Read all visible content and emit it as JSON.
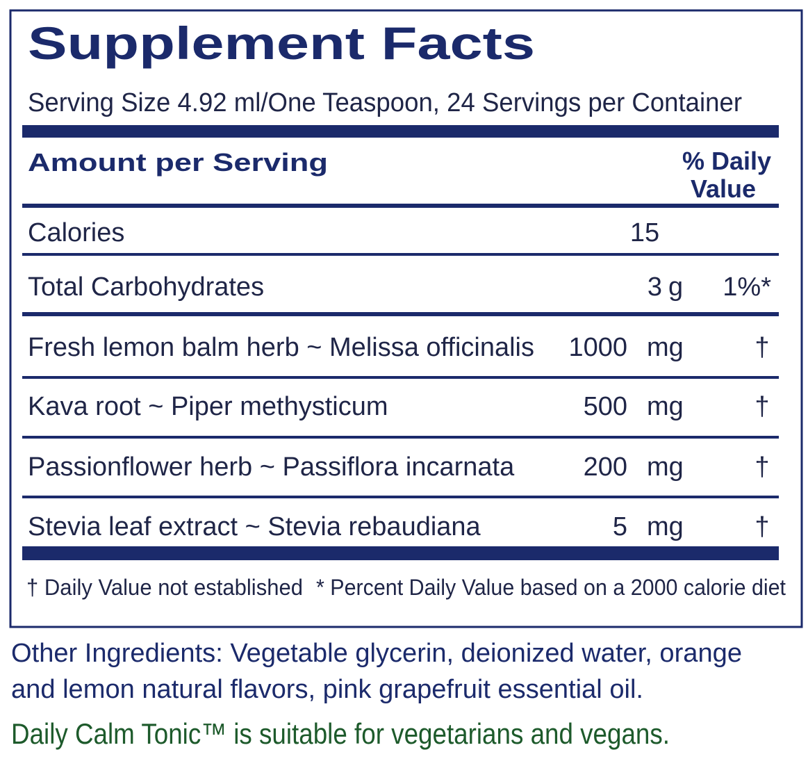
{
  "header": {
    "title": "Supplement Facts",
    "serving": "Serving Size 4.92 ml/One Teaspoon, 24 Servings per Container"
  },
  "table": {
    "amount_heading": "Amount per Serving",
    "dv_heading": [
      "% Daily",
      "Value"
    ],
    "rows": [
      {
        "name": "Calories",
        "amount": "15"
      },
      {
        "name": "Total Carbohydrates",
        "amount": "3",
        "unit": "g",
        "dv": "1%*"
      },
      {
        "name": "Fresh lemon balm herb ~ Melissa officinalis",
        "amount": "1000",
        "unit": "mg",
        "dv": "†"
      },
      {
        "name": "Kava root ~ Piper methysticum",
        "amount": "500",
        "unit": "mg",
        "dv": "†"
      },
      {
        "name": "Passionflower herb ~ Passiflora incarnata",
        "amount": "200",
        "unit": "mg",
        "dv": "†"
      },
      {
        "name": "Stevia leaf extract ~ Stevia rebaudiana",
        "amount": "5",
        "unit": "mg",
        "dv": "†"
      }
    ],
    "footnotes": [
      "† Daily Value not established",
      "* Percent Daily Value based on a 2000 calorie diet"
    ]
  },
  "other_ingredients": [
    "Other Ingredients: Vegetable glycerin, deionized water, orange",
    "and lemon natural flavors, pink grapefruit essential oil."
  ],
  "note": "Daily Calm Tonic™ is suitable for vegetarians and vegans."
}
